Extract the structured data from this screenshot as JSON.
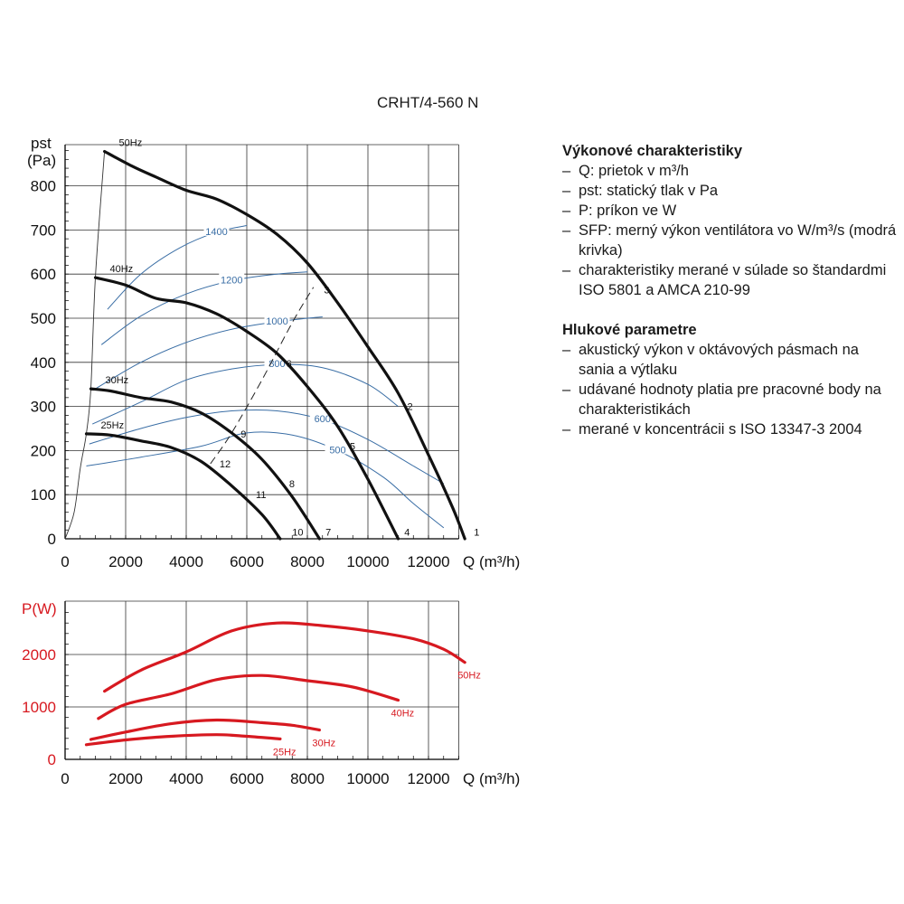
{
  "title": "CRHT/4-560 N",
  "colors": {
    "pressure_curve": "#111111",
    "sfp_curve": "#3a6ea5",
    "power_curve": "#d71920",
    "grid": "#333333"
  },
  "legend": {
    "section1_title": "Výkonové charakteristiky",
    "section1_items": [
      "Q: prietok v m³/h",
      "pst: statický tlak v Pa",
      "P: príkon ve W",
      "SFP: merný výkon ventilátora vo W/m³/s (modrá krivka)",
      "charakteristiky merané v súlade so štandardmi ISO 5801 a AMCA 210-99"
    ],
    "section2_title": "Hlukové parametre",
    "section2_items": [
      "akustický výkon v oktávových pásmach na sania a výtlaku",
      "udávané hodnoty platia pre pracovné body na charakteristikách",
      "merané v koncentrácii s ISO 13347-3 2004"
    ]
  },
  "chart_data": [
    {
      "type": "line",
      "ylabel_line1": "pst",
      "ylabel_line2": "(Pa)",
      "xlabel": "Q (m³/h)",
      "xlim": [
        0,
        13500
      ],
      "ylim": [
        0,
        900
      ],
      "xticks": [
        0,
        2000,
        4000,
        6000,
        8000,
        10000,
        12000
      ],
      "yticks": [
        0,
        100,
        200,
        300,
        400,
        500,
        600,
        700,
        800
      ],
      "series": [
        {
          "name": "50Hz",
          "x": [
            1300,
            2200,
            3000,
            4000,
            5000,
            6000,
            7000,
            8000,
            9000,
            10000,
            11000,
            12000,
            12800,
            13200
          ],
          "values": [
            878,
            845,
            820,
            790,
            770,
            735,
            690,
            625,
            535,
            435,
            330,
            190,
            70,
            0
          ]
        },
        {
          "name": "40Hz",
          "x": [
            1000,
            2000,
            3000,
            4000,
            5000,
            6000,
            7000,
            8000,
            9000,
            10000,
            11000
          ],
          "values": [
            592,
            575,
            545,
            535,
            510,
            470,
            420,
            345,
            255,
            135,
            0
          ]
        },
        {
          "name": "30Hz",
          "x": [
            850,
            1500,
            2500,
            3500,
            4500,
            5500,
            6500,
            7500,
            8400
          ],
          "values": [
            340,
            335,
            320,
            310,
            285,
            240,
            180,
            95,
            0
          ]
        },
        {
          "name": "25Hz",
          "x": [
            700,
            1500,
            2500,
            3500,
            4500,
            5500,
            6500,
            7100
          ],
          "values": [
            238,
            235,
            222,
            207,
            175,
            120,
            55,
            0
          ]
        }
      ],
      "sfp_curves": [
        {
          "label": "1400",
          "x": [
            1400,
            2500,
            3800,
            5000,
            6000
          ],
          "values": [
            520,
            600,
            660,
            695,
            710
          ]
        },
        {
          "label": "1200",
          "x": [
            1200,
            2500,
            4000,
            5500,
            7000,
            8000
          ],
          "values": [
            440,
            505,
            555,
            585,
            600,
            605
          ]
        },
        {
          "label": "1000",
          "x": [
            1000,
            2500,
            4000,
            5500,
            7000,
            8000,
            8500
          ],
          "values": [
            340,
            400,
            445,
            475,
            492,
            500,
            503
          ]
        },
        {
          "label": "800",
          "x": [
            900,
            2500,
            4000,
            5500,
            7000,
            8500,
            10000,
            11000
          ],
          "values": [
            260,
            310,
            360,
            385,
            395,
            388,
            350,
            300
          ]
        },
        {
          "label": "600",
          "x": [
            800,
            2500,
            4000,
            5500,
            7000,
            8500,
            10000,
            11500,
            12500
          ],
          "values": [
            215,
            250,
            275,
            290,
            290,
            270,
            225,
            165,
            125
          ]
        },
        {
          "label": "500",
          "x": [
            700,
            2500,
            4500,
            6000,
            7500,
            9000,
            10500,
            11500,
            12500
          ],
          "values": [
            165,
            185,
            210,
            240,
            235,
            200,
            140,
            80,
            25
          ]
        }
      ],
      "system_curve": {
        "x": [
          4800,
          5500,
          6500,
          7500,
          8200
        ],
        "values": [
          170,
          240,
          360,
          490,
          570
        ]
      },
      "left_boundary": {
        "x": [
          0,
          300,
          500,
          700,
          850,
          1000,
          1300
        ],
        "values": [
          0,
          60,
          160,
          238,
          340,
          592,
          878
        ]
      },
      "point_labels": [
        {
          "label": "1",
          "x": 13500,
          "y": 15
        },
        {
          "label": "2",
          "x": 11300,
          "y": 300
        },
        {
          "label": "3",
          "x": 8550,
          "y": 565
        },
        {
          "label": "4",
          "x": 11200,
          "y": 15
        },
        {
          "label": "5",
          "x": 9400,
          "y": 210
        },
        {
          "label": "6",
          "x": 7300,
          "y": 398
        },
        {
          "label": "7",
          "x": 8600,
          "y": 15
        },
        {
          "label": "8",
          "x": 7400,
          "y": 125
        },
        {
          "label": "9",
          "x": 5800,
          "y": 238
        },
        {
          "label": "10",
          "x": 7500,
          "y": 15
        },
        {
          "label": "11",
          "x": 6300,
          "y": 100
        },
        {
          "label": "12",
          "x": 5100,
          "y": 170
        }
      ]
    },
    {
      "type": "line",
      "ylabel": "P(W)",
      "xlabel": "Q (m³/h)",
      "xlim": [
        0,
        13500
      ],
      "ylim": [
        0,
        2800
      ],
      "xticks": [
        0,
        2000,
        4000,
        6000,
        8000,
        10000,
        12000
      ],
      "yticks": [
        0,
        1000,
        2000
      ],
      "series": [
        {
          "name": "50Hz",
          "x": [
            1300,
            2500,
            4000,
            5500,
            7000,
            8500,
            10000,
            11500,
            12500,
            13200
          ],
          "values": [
            1300,
            1700,
            2050,
            2450,
            2600,
            2550,
            2450,
            2300,
            2100,
            1850
          ]
        },
        {
          "name": "40Hz",
          "x": [
            1100,
            2000,
            3500,
            5000,
            6500,
            8000,
            9500,
            11000
          ],
          "values": [
            780,
            1050,
            1250,
            1520,
            1600,
            1500,
            1380,
            1130
          ]
        },
        {
          "name": "30Hz",
          "x": [
            850,
            2000,
            3500,
            5000,
            6500,
            7500,
            8400
          ],
          "values": [
            380,
            520,
            680,
            750,
            700,
            650,
            560
          ]
        },
        {
          "name": "25Hz",
          "x": [
            700,
            2000,
            3500,
            5000,
            6000,
            7100
          ],
          "values": [
            280,
            370,
            440,
            470,
            440,
            390
          ]
        }
      ]
    }
  ]
}
